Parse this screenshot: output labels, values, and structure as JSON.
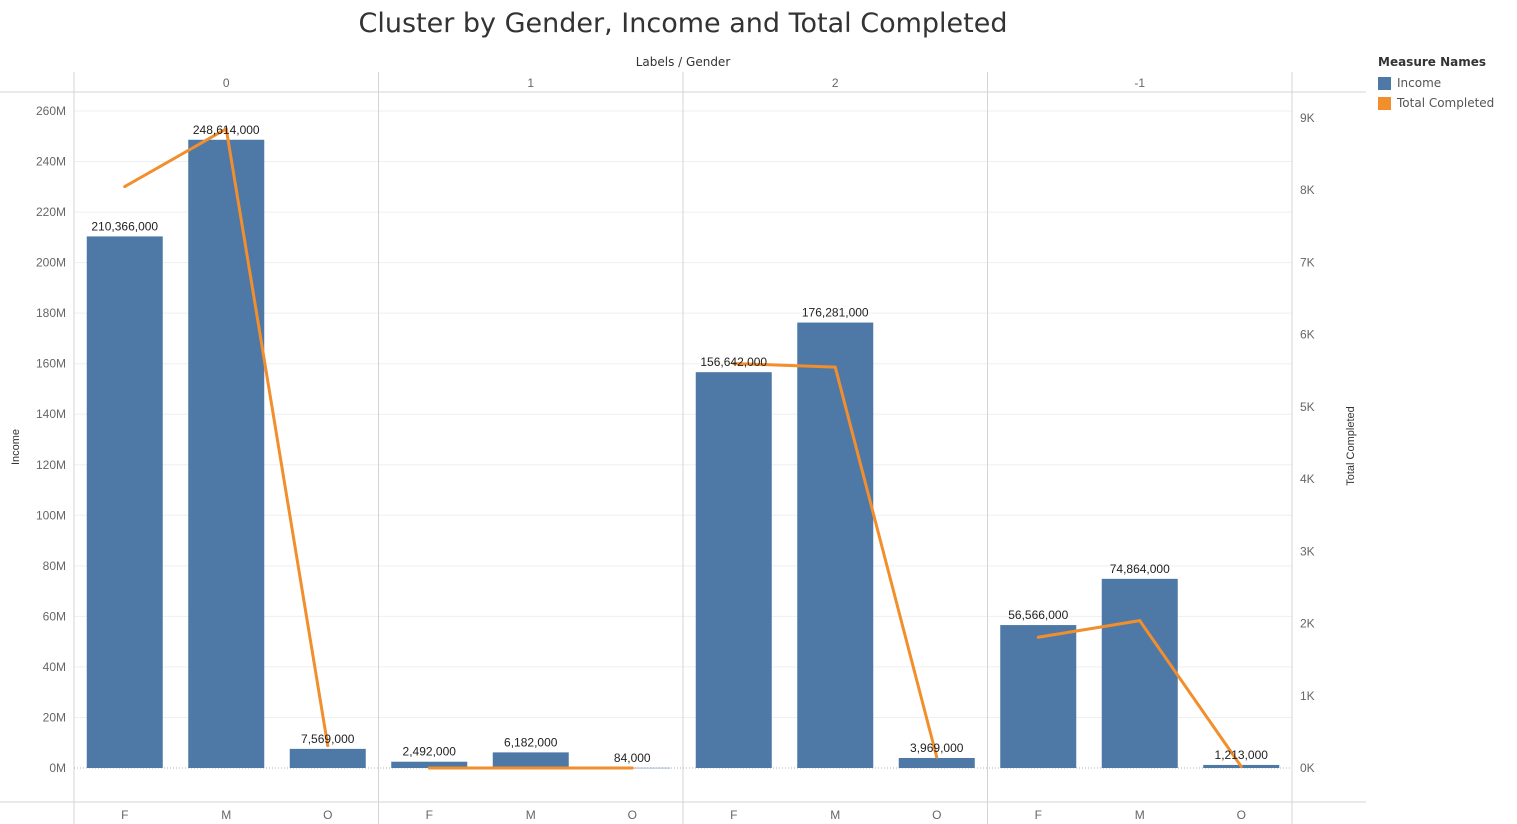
{
  "chart_data": {
    "type": "bar",
    "title": "Cluster by Gender, Income and Total Completed",
    "column_header_title": "Labels / Gender",
    "groups": [
      "0",
      "1",
      "2",
      "-1"
    ],
    "categories": [
      "F",
      "M",
      "O"
    ],
    "ylabel": "Income",
    "y2label": "Total Completed",
    "ylim": [
      0,
      260000000
    ],
    "y2lim": [
      0,
      9000
    ],
    "yticks": [
      {
        "value": 0,
        "label": "0M"
      },
      {
        "value": 20000000,
        "label": "20M"
      },
      {
        "value": 40000000,
        "label": "40M"
      },
      {
        "value": 60000000,
        "label": "60M"
      },
      {
        "value": 80000000,
        "label": "80M"
      },
      {
        "value": 100000000,
        "label": "100M"
      },
      {
        "value": 120000000,
        "label": "120M"
      },
      {
        "value": 140000000,
        "label": "140M"
      },
      {
        "value": 160000000,
        "label": "160M"
      },
      {
        "value": 180000000,
        "label": "180M"
      },
      {
        "value": 200000000,
        "label": "200M"
      },
      {
        "value": 220000000,
        "label": "220M"
      },
      {
        "value": 240000000,
        "label": "240M"
      },
      {
        "value": 260000000,
        "label": "260M"
      }
    ],
    "y2ticks": [
      {
        "value": 0,
        "label": "0K"
      },
      {
        "value": 1000,
        "label": "1K"
      },
      {
        "value": 2000,
        "label": "2K"
      },
      {
        "value": 3000,
        "label": "3K"
      },
      {
        "value": 4000,
        "label": "4K"
      },
      {
        "value": 5000,
        "label": "5K"
      },
      {
        "value": 6000,
        "label": "6K"
      },
      {
        "value": 7000,
        "label": "7K"
      },
      {
        "value": 8000,
        "label": "8K"
      },
      {
        "value": 9000,
        "label": "9K"
      }
    ],
    "series": [
      {
        "name": "Income",
        "type": "bar",
        "color": "#4e79a7",
        "values": [
          [
            210366000,
            248614000,
            7569000
          ],
          [
            2492000,
            6182000,
            84000
          ],
          [
            156642000,
            176281000,
            3969000
          ],
          [
            56566000,
            74864000,
            1213000
          ]
        ],
        "labels": [
          [
            "210,366,000",
            "248,614,000",
            "7,569,000"
          ],
          [
            "2,492,000",
            "6,182,000",
            "84,000"
          ],
          [
            "156,642,000",
            "176,281,000",
            "3,969,000"
          ],
          [
            "56,566,000",
            "74,864,000",
            "1,213,000"
          ]
        ]
      },
      {
        "name": "Total Completed",
        "type": "line",
        "color": "#f28e2b",
        "values": [
          [
            8050,
            8850,
            310
          ],
          [
            0,
            0,
            0
          ],
          [
            5600,
            5550,
            150
          ],
          [
            1810,
            2040,
            20
          ]
        ]
      }
    ],
    "legend": {
      "title": "Measure Names",
      "position": "right"
    },
    "grid": true
  }
}
